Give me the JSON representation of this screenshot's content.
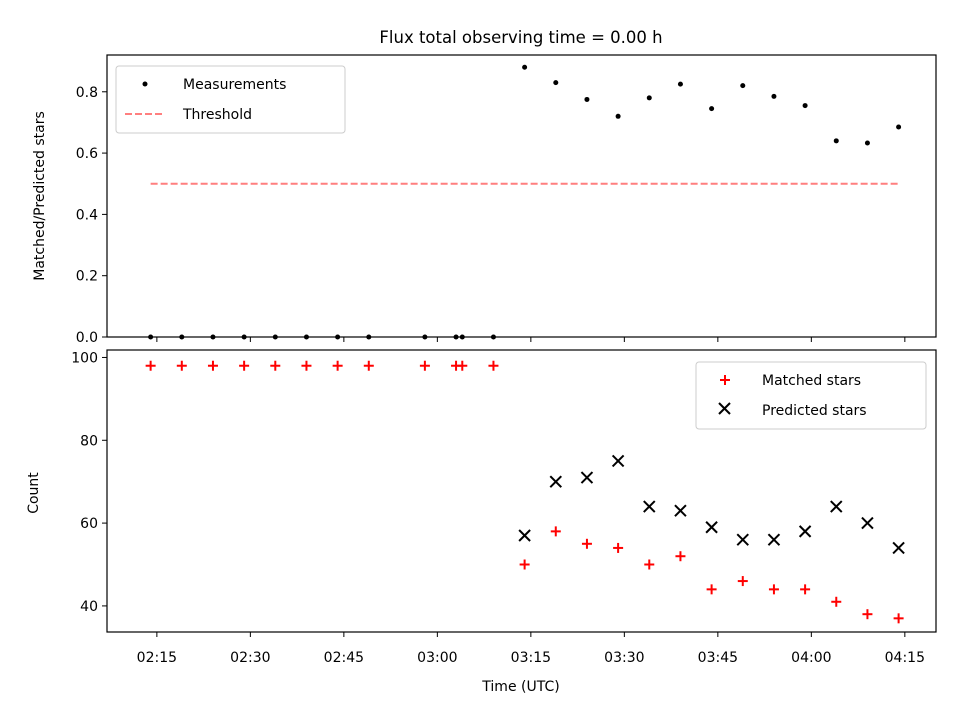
{
  "chart_data": [
    {
      "type": "scatter",
      "title": "Flux total observing time = 0.00 h",
      "xlabel": "",
      "ylabel": "Matched/Predicted stars",
      "ylim": [
        0,
        0.92
      ],
      "yticks": [
        0.0,
        0.2,
        0.4,
        0.6,
        0.8
      ],
      "ytick_labels": [
        "0.0",
        "0.2",
        "0.4",
        "0.6",
        "0.8"
      ],
      "x_axis": "time (minutes after 02:00 UTC), shared with lower panel",
      "legend_position": "upper-left",
      "series": [
        {
          "name": "Measurements",
          "marker": "dot",
          "color": "#000000",
          "x": [
            "02:14",
            "02:19",
            "02:24",
            "02:29",
            "02:34",
            "02:39",
            "02:44",
            "02:49",
            "02:58",
            "03:03",
            "03:04",
            "03:09",
            "03:14",
            "03:19",
            "03:24",
            "03:29",
            "03:34",
            "03:39",
            "03:44",
            "03:49",
            "03:54",
            "03:59",
            "04:04",
            "04:09",
            "04:14"
          ],
          "y": [
            0,
            0,
            0,
            0,
            0,
            0,
            0,
            0,
            0,
            0,
            0,
            0,
            0.88,
            0.83,
            0.775,
            0.72,
            0.78,
            0.825,
            0.745,
            0.82,
            0.785,
            0.755,
            0.64,
            0.633,
            0.685
          ]
        },
        {
          "name": "Threshold",
          "marker": "dashed-line",
          "color": "#ff7f7f",
          "x": [
            "02:14",
            "04:14"
          ],
          "y": [
            0.5,
            0.5
          ]
        }
      ]
    },
    {
      "type": "scatter",
      "xlabel": "Time (UTC)",
      "ylabel": "Count",
      "ylim": [
        33.7,
        101.8
      ],
      "yticks": [
        40,
        60,
        80,
        100
      ],
      "ytick_labels": [
        "40",
        "60",
        "80",
        "100"
      ],
      "xticks": [
        "02:15",
        "02:30",
        "02:45",
        "03:00",
        "03:15",
        "03:30",
        "03:45",
        "04:00",
        "04:15"
      ],
      "xlim": [
        "02:07",
        "04:20"
      ],
      "legend_position": "upper-right",
      "series": [
        {
          "name": "Matched stars",
          "marker": "plus",
          "color": "#ff0000",
          "x": [
            "02:14",
            "02:19",
            "02:24",
            "02:29",
            "02:34",
            "02:39",
            "02:44",
            "02:49",
            "02:58",
            "03:03",
            "03:04",
            "03:09",
            "03:14",
            "03:19",
            "03:24",
            "03:29",
            "03:34",
            "03:39",
            "03:44",
            "03:49",
            "03:54",
            "03:59",
            "04:04",
            "04:09",
            "04:14"
          ],
          "y": [
            98,
            98,
            98,
            98,
            98,
            98,
            98,
            98,
            98,
            98,
            98,
            98,
            50,
            58,
            55,
            54,
            50,
            52,
            44,
            46,
            44,
            44,
            41,
            38,
            37
          ]
        },
        {
          "name": "Predicted stars",
          "marker": "x",
          "color": "#000000",
          "x": [
            "03:14",
            "03:19",
            "03:24",
            "03:29",
            "03:34",
            "03:39",
            "03:44",
            "03:49",
            "03:54",
            "03:59",
            "04:04",
            "04:09",
            "04:14"
          ],
          "y": [
            57,
            70,
            71,
            75,
            64,
            63,
            59,
            56,
            56,
            58,
            64,
            60,
            54
          ]
        }
      ]
    }
  ]
}
